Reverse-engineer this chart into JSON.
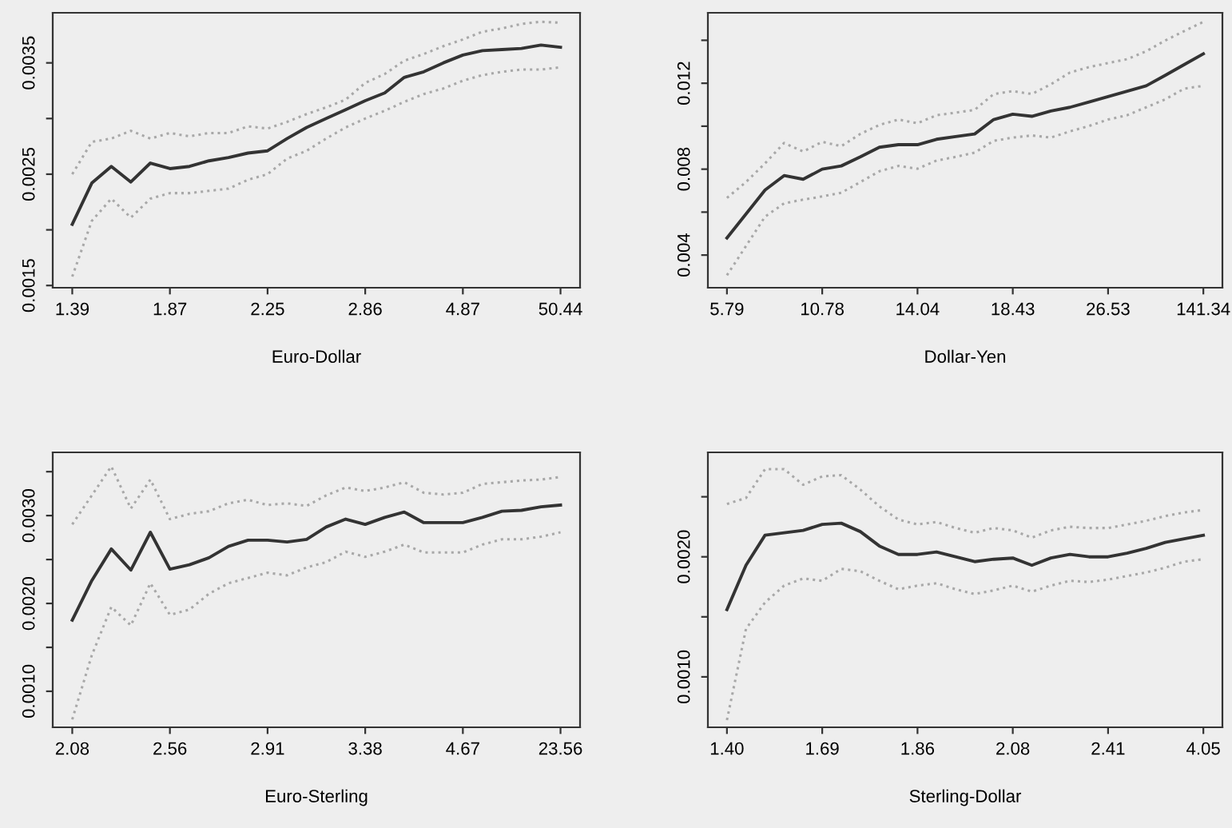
{
  "chart_data": [
    {
      "type": "line",
      "xlabel": "Euro-Dollar",
      "categories": [
        "1.39",
        null,
        null,
        null,
        null,
        "1.87",
        null,
        null,
        null,
        null,
        "2.25",
        null,
        null,
        null,
        null,
        "2.86",
        null,
        null,
        null,
        null,
        "4.87",
        null,
        null,
        null,
        null,
        "50.44"
      ],
      "ylim": [
        0.00148,
        0.00395
      ],
      "yticks": [
        0.0015,
        {
          "value": 0.002,
          "label": null
        },
        0.0025,
        {
          "value": 0.003,
          "label": null
        },
        0.0035
      ],
      "grid": false,
      "legend": false,
      "series": [
        {
          "color": "#a8a8a8",
          "line_style": "dotted",
          "values": [
            0.0025,
            0.00279,
            0.00282,
            0.00289,
            0.00282,
            0.00287,
            0.00284,
            0.00287,
            0.00287,
            0.00293,
            0.00291,
            0.00297,
            0.00304,
            0.0031,
            0.00317,
            0.00332,
            0.0034,
            0.00352,
            0.00358,
            0.00365,
            0.00371,
            0.00378,
            0.00381,
            0.00385,
            0.00387,
            0.00386
          ]
        },
        {
          "color": "#a8a8a8",
          "line_style": "dotted",
          "values": [
            0.00158,
            0.00208,
            0.00228,
            0.00211,
            0.00228,
            0.00233,
            0.00233,
            0.00235,
            0.00237,
            0.00245,
            0.0025,
            0.00264,
            0.00271,
            0.00282,
            0.00292,
            0.003,
            0.00307,
            0.00315,
            0.00322,
            0.00327,
            0.00334,
            0.00339,
            0.00342,
            0.00344,
            0.00344,
            0.00346
          ]
        },
        {
          "color": "#333333",
          "line_style": "solid",
          "values": [
            0.00205,
            0.00242,
            0.00257,
            0.00243,
            0.0026,
            0.00255,
            0.00257,
            0.00262,
            0.00265,
            0.00269,
            0.00271,
            0.00282,
            0.00292,
            0.003,
            0.00308,
            0.00316,
            0.00323,
            0.00337,
            0.00342,
            0.0035,
            0.00357,
            0.00361,
            0.00362,
            0.00363,
            0.00366,
            0.00364
          ]
        }
      ]
    },
    {
      "type": "line",
      "xlabel": "Dollar-Yen",
      "categories": [
        "5.79",
        null,
        null,
        null,
        null,
        "10.78",
        null,
        null,
        null,
        null,
        "14.04",
        null,
        null,
        null,
        null,
        "18.43",
        null,
        null,
        null,
        null,
        "26.53",
        null,
        null,
        null,
        null,
        "141.34"
      ],
      "ylim": [
        0.00248,
        0.01528
      ],
      "yticks": [
        0.004,
        {
          "value": 0.006,
          "label": null
        },
        0.008,
        {
          "value": 0.01,
          "label": null
        },
        0.012,
        {
          "value": 0.014,
          "label": null
        }
      ],
      "grid": false,
      "legend": false,
      "series": [
        {
          "color": "#a8a8a8",
          "line_style": "dotted",
          "values": [
            0.00666,
            0.0074,
            0.00827,
            0.00922,
            0.00882,
            0.00927,
            0.00907,
            0.00964,
            0.01006,
            0.01031,
            0.01014,
            0.01051,
            0.01063,
            0.01076,
            0.0115,
            0.01163,
            0.0115,
            0.01195,
            0.0125,
            0.01275,
            0.01294,
            0.01312,
            0.01349,
            0.01399,
            0.01443,
            0.01486
          ]
        },
        {
          "color": "#a8a8a8",
          "line_style": "dotted",
          "values": [
            0.00306,
            0.00442,
            0.00579,
            0.00641,
            0.00658,
            0.00673,
            0.0069,
            0.0074,
            0.0079,
            0.00815,
            0.00802,
            0.0084,
            0.00857,
            0.00877,
            0.00932,
            0.00947,
            0.00957,
            0.00947,
            0.00976,
            0.01001,
            0.01031,
            0.01051,
            0.01088,
            0.01125,
            0.01175,
            0.01188
          ]
        },
        {
          "color": "#333333",
          "line_style": "solid",
          "values": [
            0.0048,
            0.00591,
            0.00703,
            0.0077,
            0.00753,
            0.008,
            0.00815,
            0.00857,
            0.00902,
            0.00914,
            0.00914,
            0.00939,
            0.00952,
            0.00964,
            0.01031,
            0.01056,
            0.01046,
            0.01071,
            0.01088,
            0.01113,
            0.01138,
            0.01163,
            0.01188,
            0.01237,
            0.01287,
            0.01337
          ]
        }
      ]
    },
    {
      "type": "line",
      "xlabel": "Euro-Sterling",
      "categories": [
        "2.08",
        null,
        null,
        null,
        null,
        "2.56",
        null,
        null,
        null,
        null,
        "2.91",
        null,
        null,
        null,
        null,
        "3.38",
        null,
        null,
        null,
        null,
        "4.67",
        null,
        null,
        null,
        null,
        "23.56"
      ],
      "ylim": [
        0.00059,
        0.00372
      ],
      "yticks": [
        {
          "value": 0.001,
          "label": "0.0010"
        },
        {
          "value": 0.0015,
          "label": null
        },
        {
          "value": 0.002,
          "label": "0.0020"
        },
        {
          "value": 0.0025,
          "label": null
        },
        {
          "value": 0.003,
          "label": "0.0030"
        },
        {
          "value": 0.0035,
          "label": null
        }
      ],
      "grid": false,
      "legend": false,
      "series": [
        {
          "color": "#a8a8a8",
          "line_style": "dotted",
          "values": [
            0.0029,
            0.00323,
            0.00356,
            0.00308,
            0.00341,
            0.00296,
            0.00302,
            0.00305,
            0.00314,
            0.00318,
            0.00312,
            0.00314,
            0.00311,
            0.00323,
            0.00332,
            0.00328,
            0.00332,
            0.00338,
            0.00326,
            0.00324,
            0.00326,
            0.00336,
            0.00338,
            0.0034,
            0.00341,
            0.00344
          ]
        },
        {
          "color": "#a8a8a8",
          "line_style": "dotted",
          "values": [
            0.00068,
            0.00141,
            0.00196,
            0.00175,
            0.00223,
            0.00187,
            0.00193,
            0.00211,
            0.00223,
            0.00229,
            0.00235,
            0.00232,
            0.00241,
            0.00247,
            0.00259,
            0.00253,
            0.00259,
            0.00267,
            0.00258,
            0.00258,
            0.00258,
            0.00267,
            0.00273,
            0.00273,
            0.00276,
            0.00281
          ]
        },
        {
          "color": "#333333",
          "line_style": "solid",
          "values": [
            0.00181,
            0.00226,
            0.00262,
            0.00238,
            0.00281,
            0.00239,
            0.00244,
            0.00252,
            0.00265,
            0.00272,
            0.00272,
            0.0027,
            0.00273,
            0.00287,
            0.00296,
            0.0029,
            0.00298,
            0.00304,
            0.00292,
            0.00292,
            0.00292,
            0.00298,
            0.00305,
            0.00306,
            0.0031,
            0.00312
          ]
        }
      ]
    },
    {
      "type": "line",
      "xlabel": "Sterling-Dollar",
      "categories": [
        "1.40",
        null,
        null,
        null,
        null,
        "1.69",
        null,
        null,
        null,
        null,
        "1.86",
        null,
        null,
        null,
        null,
        "2.08",
        null,
        null,
        null,
        null,
        "2.41",
        null,
        null,
        null,
        null,
        "4.05"
      ],
      "ylim": [
        0.00058,
        0.00287
      ],
      "yticks": [
        {
          "value": 0.001,
          "label": "0.0010"
        },
        {
          "value": 0.0015,
          "label": null
        },
        {
          "value": 0.002,
          "label": "0.0020"
        },
        {
          "value": 0.0025,
          "label": null
        }
      ],
      "grid": false,
      "legend": false,
      "series": [
        {
          "color": "#a8a8a8",
          "line_style": "dotted",
          "values": [
            0.00244,
            0.00249,
            0.00273,
            0.00273,
            0.0026,
            0.00267,
            0.00268,
            0.00256,
            0.00242,
            0.00231,
            0.00227,
            0.00229,
            0.00224,
            0.0022,
            0.00224,
            0.00222,
            0.00216,
            0.00222,
            0.00225,
            0.00224,
            0.00224,
            0.00227,
            0.0023,
            0.00234,
            0.00237,
            0.00239
          ]
        },
        {
          "color": "#a8a8a8",
          "line_style": "dotted",
          "values": [
            0.00064,
            0.0014,
            0.00162,
            0.00176,
            0.00182,
            0.0018,
            0.0019,
            0.00188,
            0.0018,
            0.00173,
            0.00176,
            0.00178,
            0.00173,
            0.00169,
            0.00172,
            0.00176,
            0.00171,
            0.00176,
            0.0018,
            0.00179,
            0.00181,
            0.00184,
            0.00187,
            0.00191,
            0.00196,
            0.00198
          ]
        },
        {
          "color": "#333333",
          "line_style": "solid",
          "values": [
            0.00156,
            0.00193,
            0.00218,
            0.0022,
            0.00222,
            0.00227,
            0.00228,
            0.00221,
            0.00209,
            0.00202,
            0.00202,
            0.00204,
            0.002,
            0.00196,
            0.00198,
            0.00199,
            0.00193,
            0.00199,
            0.00202,
            0.002,
            0.002,
            0.00203,
            0.00207,
            0.00212,
            0.00215,
            0.00218
          ]
        }
      ]
    }
  ]
}
